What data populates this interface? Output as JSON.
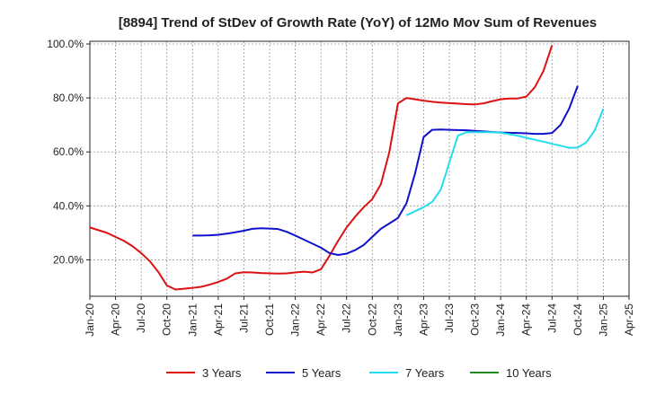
{
  "chart_data": {
    "type": "line",
    "title": "[8894]  Trend of StDev of Growth Rate (YoY) of 12Mo Mov Sum of Revenues",
    "xlabel": "",
    "ylabel": "",
    "x_tick_labels": [
      "Jan-20",
      "Apr-20",
      "Jul-20",
      "Oct-20",
      "Jan-21",
      "Apr-21",
      "Jul-21",
      "Oct-21",
      "Jan-22",
      "Apr-22",
      "Jul-22",
      "Oct-22",
      "Jan-23",
      "Apr-23",
      "Jul-23",
      "Oct-23",
      "Jan-24",
      "Apr-24",
      "Jul-24",
      "Oct-24",
      "Jan-25",
      "Apr-25"
    ],
    "y_ticks": [
      20,
      40,
      60,
      80,
      100
    ],
    "y_tick_labels": [
      "20.0%",
      "40.0%",
      "60.0%",
      "80.0%",
      "100.0%"
    ],
    "ylim": [
      6.5,
      101
    ],
    "grid": true,
    "legend_position": "bottom",
    "series": [
      {
        "name": "3 Years",
        "color": "#dd1111",
        "start_index": 0,
        "values": [
          32.0,
          31.0,
          30.0,
          28.5,
          27.0,
          25.0,
          22.5,
          19.5,
          15.5,
          10.5,
          9.0,
          9.3,
          9.6,
          10.0,
          10.8,
          11.8,
          13.0,
          15.0,
          15.4,
          15.3,
          15.1,
          15.0,
          14.9,
          15.0,
          15.3,
          15.6,
          15.3,
          16.5,
          21.5,
          27.0,
          32.0,
          36.0,
          39.5,
          42.5,
          48.0,
          60.0,
          78.0,
          80.0,
          79.5,
          79.0,
          78.6,
          78.3,
          78.1,
          77.9,
          77.7,
          77.6,
          78.0,
          78.8,
          79.5,
          79.8,
          79.8,
          80.5,
          84.0,
          90.0,
          99.5
        ]
      },
      {
        "name": "5 Years",
        "color": "#1111cc",
        "start_index": 12,
        "values": [
          29.0,
          29.0,
          29.1,
          29.3,
          29.7,
          30.2,
          30.8,
          31.5,
          31.7,
          31.6,
          31.4,
          30.4,
          29.0,
          27.5,
          26.0,
          24.5,
          22.5,
          21.8,
          22.3,
          23.6,
          25.5,
          28.5,
          31.5,
          33.5,
          35.5,
          41.0,
          52.0,
          65.5,
          68.2,
          68.3,
          68.2,
          68.1,
          68.0,
          67.8,
          67.6,
          67.4,
          67.2,
          67.1,
          67.0,
          66.9,
          66.7,
          66.7,
          67.0,
          70.0,
          76.0,
          84.5
        ]
      },
      {
        "name": "7 Years",
        "color": "#22ddee",
        "start_index": 37,
        "values": [
          36.5,
          38.0,
          39.5,
          41.5,
          46.0,
          56.0,
          66.0,
          67.3,
          67.3,
          67.3,
          67.3,
          67.1,
          66.6,
          66.0,
          65.2,
          64.5,
          63.8,
          63.0,
          62.3,
          61.5,
          61.6,
          63.5,
          68.0,
          76.0
        ]
      },
      {
        "name": "10 Years",
        "color": "#228822",
        "start_index": null,
        "values": []
      }
    ]
  }
}
